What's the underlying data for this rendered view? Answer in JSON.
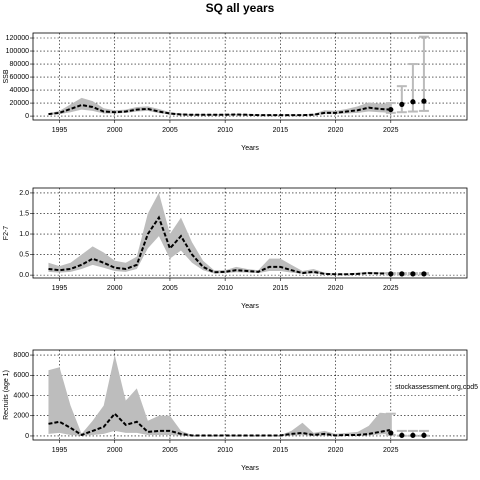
{
  "title": "SQ all years",
  "chart_data": [
    {
      "type": "line",
      "xlabel": "Years",
      "ylabel": "SSB",
      "xlim": [
        1992.6,
        2031.9
      ],
      "xticks": [
        1995,
        2000,
        2005,
        2010,
        2015,
        2020,
        2025
      ],
      "ylim": [
        -6000,
        127700
      ],
      "yticks": [
        0,
        20000,
        40000,
        60000,
        80000,
        100000,
        120000
      ],
      "grid": true,
      "x": [
        1994,
        1995,
        1996,
        1997,
        1998,
        1999,
        2000,
        2001,
        2002,
        2003,
        2004,
        2005,
        2006,
        2007,
        2008,
        2009,
        2010,
        2011,
        2012,
        2013,
        2014,
        2015,
        2016,
        2017,
        2018,
        2019,
        2020,
        2021,
        2022,
        2023,
        2024,
        2025
      ],
      "values": [
        3000,
        5000,
        11000,
        17000,
        14000,
        7000,
        6000,
        7000,
        10000,
        11000,
        7000,
        4000,
        2500,
        2000,
        2000,
        2000,
        2000,
        2500,
        2000,
        1500,
        1500,
        1500,
        1500,
        1500,
        2000,
        5000,
        5000,
        7000,
        9000,
        13000,
        11000,
        10000
      ],
      "upper": [
        4000,
        8000,
        18000,
        28000,
        23000,
        12000,
        9000,
        10000,
        14000,
        15000,
        11000,
        6000,
        4000,
        3000,
        3000,
        3000,
        3000,
        3500,
        3000,
        2500,
        2500,
        2500,
        2500,
        2500,
        3500,
        9000,
        8000,
        11000,
        15000,
        21000,
        19000,
        20000
      ],
      "lower": [
        2000,
        3000,
        6000,
        10000,
        8000,
        4000,
        4000,
        5000,
        7000,
        8000,
        4500,
        2500,
        1500,
        1200,
        1200,
        1200,
        1300,
        1500,
        1200,
        900,
        900,
        900,
        900,
        900,
        1200,
        3000,
        3000,
        4000,
        5000,
        7000,
        6000,
        5000
      ],
      "proj": {
        "x": [
          2025,
          2026,
          2027,
          2028
        ],
        "values": [
          10000,
          18000,
          22000,
          23000
        ],
        "lower": [
          5000,
          6000,
          7000,
          8000
        ],
        "upper": [
          20000,
          46000,
          80000,
          122000
        ]
      }
    },
    {
      "type": "line",
      "xlabel": "Years",
      "ylabel": "F2-7",
      "xlim": [
        1992.6,
        2031.9
      ],
      "xticks": [
        1995,
        2000,
        2005,
        2010,
        2015,
        2020,
        2025
      ],
      "ylim": [
        -0.07,
        2.12
      ],
      "yticks": [
        {
          "value": 0,
          "label": "0.0"
        },
        0.5,
        {
          "value": 1,
          "label": "1.0"
        },
        1.5,
        {
          "value": 2,
          "label": "2.0"
        }
      ],
      "grid": true,
      "x": [
        1994,
        1995,
        1996,
        1997,
        1998,
        1999,
        2000,
        2001,
        2002,
        2003,
        2004,
        2005,
        2006,
        2007,
        2008,
        2009,
        2010,
        2011,
        2012,
        2013,
        2014,
        2015,
        2016,
        2017,
        2018,
        2019,
        2020,
        2021,
        2022,
        2023,
        2024,
        2025
      ],
      "values": [
        0.15,
        0.12,
        0.15,
        0.25,
        0.4,
        0.3,
        0.18,
        0.15,
        0.25,
        1.0,
        1.4,
        0.65,
        0.95,
        0.5,
        0.2,
        0.07,
        0.08,
        0.12,
        0.1,
        0.08,
        0.2,
        0.2,
        0.12,
        0.05,
        0.08,
        0.03,
        0.02,
        0.02,
        0.03,
        0.05,
        0.04,
        0.04
      ],
      "upper": [
        0.3,
        0.22,
        0.3,
        0.5,
        0.7,
        0.55,
        0.35,
        0.3,
        0.45,
        1.5,
        2.0,
        1.0,
        1.4,
        0.8,
        0.35,
        0.12,
        0.12,
        0.2,
        0.15,
        0.12,
        0.4,
        0.4,
        0.25,
        0.1,
        0.15,
        0.06,
        0.04,
        0.04,
        0.06,
        0.08,
        0.07,
        0.07
      ],
      "lower": [
        0.08,
        0.06,
        0.08,
        0.15,
        0.25,
        0.18,
        0.1,
        0.08,
        0.15,
        0.65,
        0.95,
        0.4,
        0.6,
        0.3,
        0.12,
        0.04,
        0.05,
        0.07,
        0.06,
        0.05,
        0.1,
        0.1,
        0.06,
        0.03,
        0.04,
        0.015,
        0.01,
        0.01,
        0.015,
        0.03,
        0.025,
        0.025
      ],
      "proj": {
        "x": [
          2025,
          2026,
          2027,
          2028
        ],
        "values": [
          0.03,
          0.03,
          0.03,
          0.03
        ],
        "lower": [
          0.02,
          0.02,
          0.02,
          0.02
        ],
        "upper": [
          0.05,
          0.05,
          0.05,
          0.05
        ]
      }
    },
    {
      "type": "line",
      "xlabel": "Years",
      "ylabel": "Recruits (age 1)",
      "annotation": "stockassessment.org,cod5",
      "xlim": [
        1992.6,
        2031.9
      ],
      "xticks": [
        1995,
        2000,
        2005,
        2010,
        2015,
        2020,
        2025
      ],
      "ylim": [
        -400,
        8500
      ],
      "yticks": [
        0,
        2000,
        4000,
        6000,
        8000
      ],
      "grid": true,
      "x": [
        1994,
        1995,
        1996,
        1997,
        1998,
        1999,
        2000,
        2001,
        2002,
        2003,
        2004,
        2005,
        2006,
        2007,
        2008,
        2009,
        2010,
        2011,
        2012,
        2013,
        2014,
        2015,
        2016,
        2017,
        2018,
        2019,
        2020,
        2021,
        2022,
        2023,
        2024,
        2025
      ],
      "values": [
        1200,
        1400,
        800,
        100,
        500,
        900,
        2200,
        1100,
        1400,
        400,
        500,
        500,
        200,
        50,
        50,
        50,
        50,
        50,
        50,
        50,
        50,
        50,
        200,
        300,
        100,
        200,
        50,
        100,
        100,
        200,
        400,
        600
      ],
      "upper": [
        6500,
        6800,
        3000,
        200,
        1500,
        3000,
        8000,
        3500,
        4700,
        1500,
        2000,
        2000,
        500,
        100,
        80,
        80,
        80,
        80,
        80,
        80,
        80,
        80,
        500,
        1300,
        300,
        500,
        200,
        300,
        400,
        1000,
        2300,
        2200
      ],
      "lower": [
        200,
        300,
        100,
        30,
        100,
        200,
        500,
        300,
        300,
        100,
        100,
        100,
        50,
        20,
        20,
        20,
        20,
        20,
        20,
        20,
        20,
        20,
        50,
        80,
        30,
        50,
        20,
        30,
        30,
        60,
        150,
        200
      ],
      "proj": {
        "x": [
          2025,
          2026,
          2027,
          2028
        ],
        "values": [
          300,
          60,
          60,
          60
        ],
        "lower": [
          100,
          20,
          20,
          20
        ],
        "upper": [
          2200,
          500,
          500,
          500
        ]
      }
    }
  ]
}
